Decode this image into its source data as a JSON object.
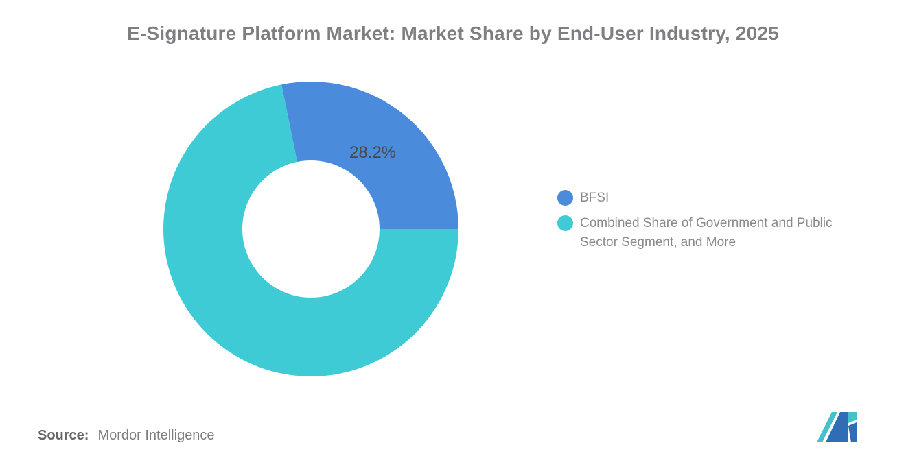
{
  "title": "E-Signature Platform Market: Market Share by End-User Industry, 2025",
  "chart_data": {
    "type": "pie",
    "subtype": "donut",
    "title": "E-Signature Platform Market: Market Share by End-User Industry, 2025",
    "series": [
      {
        "name": "BFSI",
        "value": 28.2,
        "color": "#4A8BDC",
        "data_label": "28.2%"
      },
      {
        "name": "Combined Share of Government and Public\nSector Segment, and More",
        "value": 71.8,
        "color": "#3ECBD5",
        "data_label": ""
      }
    ],
    "legend_position": "right",
    "first_slice_end_deg": 90,
    "donut_hole_ratio": 0.465,
    "grid": false
  },
  "source": {
    "label": "Source:",
    "value": "Mordor Intelligence"
  },
  "logo": {
    "name": "Mordor Intelligence logo",
    "colors": {
      "blue": "#2F6EB5",
      "teal": "#46C0C9"
    }
  }
}
